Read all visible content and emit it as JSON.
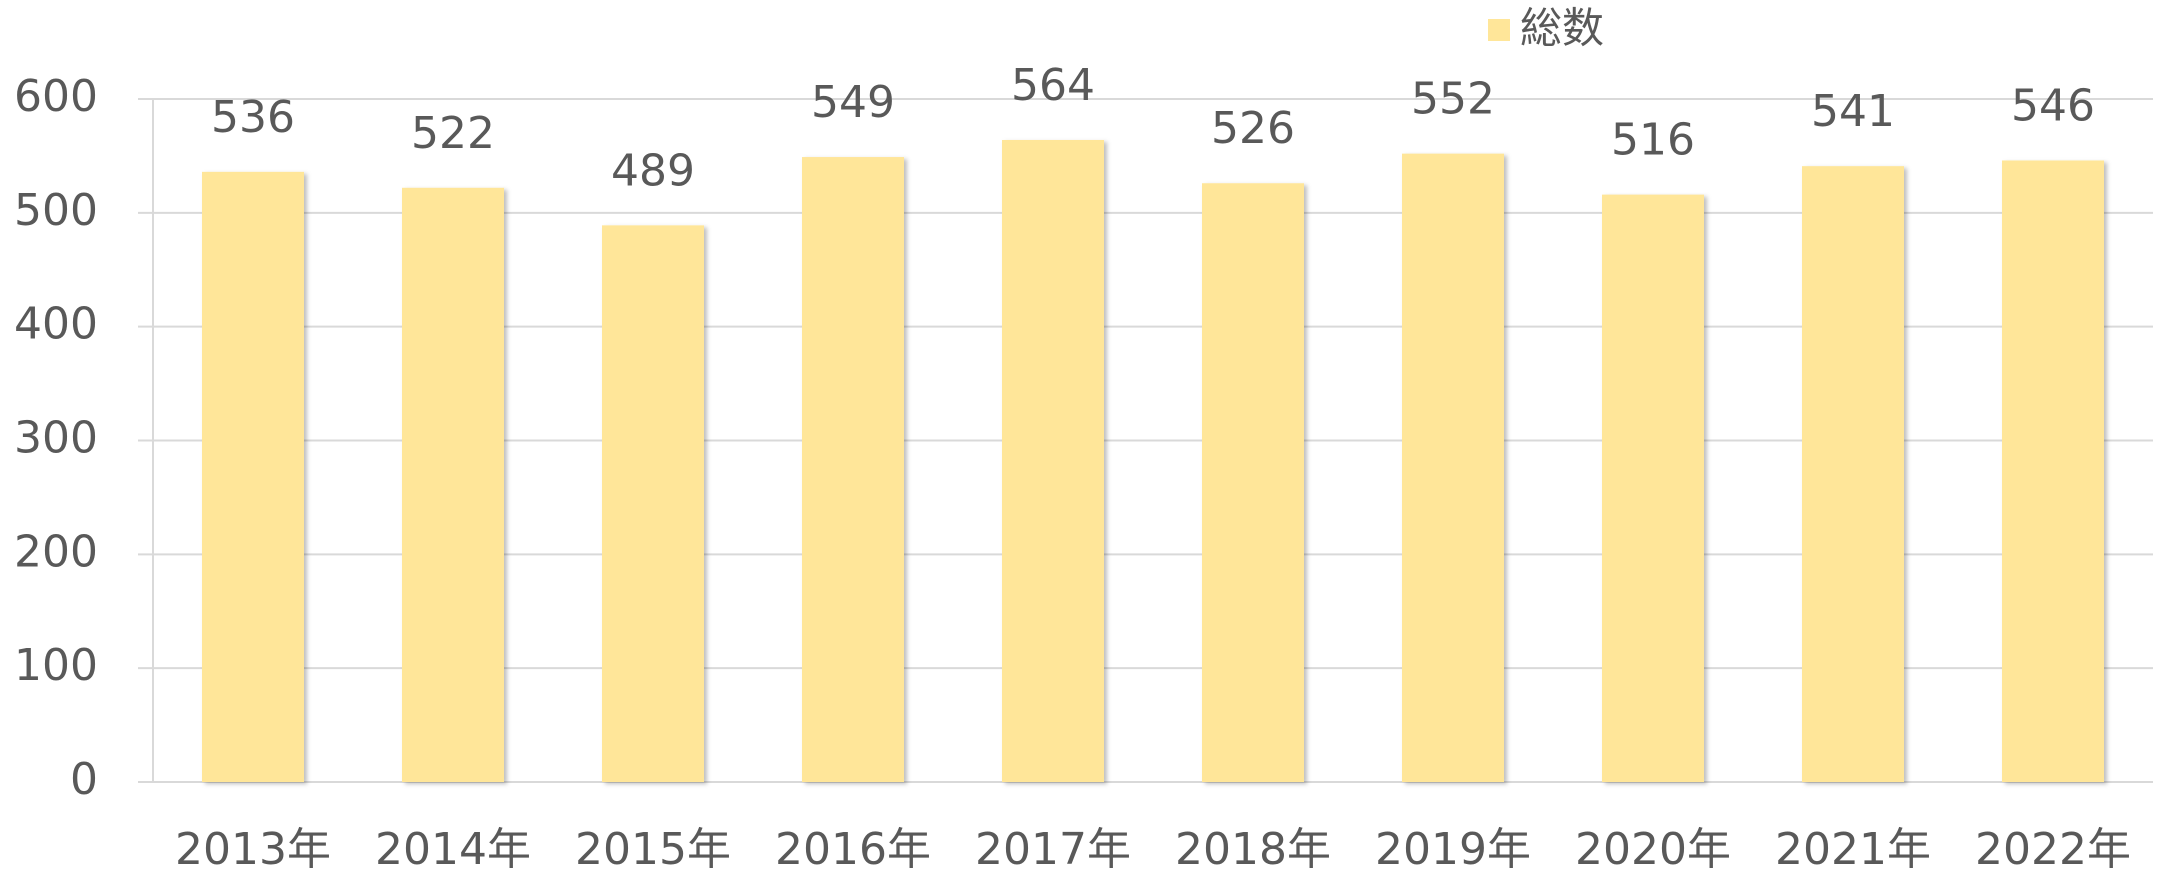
{
  "chart_data": {
    "type": "bar",
    "categories": [
      "2013年",
      "2014年",
      "2015年",
      "2016年",
      "2017年",
      "2018年",
      "2019年",
      "2020年",
      "2021年",
      "2022年"
    ],
    "series": [
      {
        "name": "総数",
        "color": "#ffe699",
        "values": [
          536,
          522,
          489,
          549,
          564,
          526,
          552,
          516,
          541,
          546
        ]
      }
    ],
    "ylim": [
      0,
      600
    ],
    "yticks": [
      0,
      100,
      200,
      300,
      400,
      500,
      600
    ],
    "grid": true,
    "legend": "top"
  }
}
